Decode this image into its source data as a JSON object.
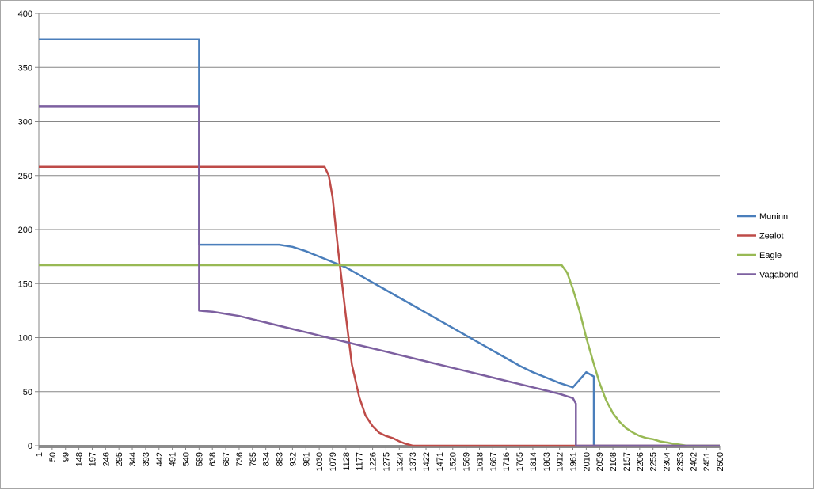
{
  "chart_data": {
    "type": "line",
    "title": "",
    "xlabel": "",
    "ylabel": "",
    "ylim": [
      0,
      400
    ],
    "yticks": [
      0,
      50,
      100,
      150,
      200,
      250,
      300,
      350,
      400
    ],
    "xlim": [
      1,
      2500
    ],
    "xticks": [
      1,
      50,
      99,
      148,
      197,
      246,
      295,
      344,
      393,
      442,
      491,
      540,
      589,
      638,
      687,
      736,
      785,
      834,
      883,
      932,
      981,
      1030,
      1079,
      1128,
      1177,
      1226,
      1275,
      1324,
      1373,
      1422,
      1471,
      1520,
      1569,
      1618,
      1667,
      1716,
      1765,
      1814,
      1863,
      1912,
      1961,
      2010,
      2059,
      2108,
      2157,
      2206,
      2255,
      2304,
      2353,
      2402,
      2451,
      2500
    ],
    "grid": true,
    "legend": "right",
    "series": [
      {
        "name": "Muninn",
        "color": "#4a7ebb",
        "x": [
          1,
          589,
          589,
          883,
          932,
          981,
          1030,
          1079,
          1128,
          1177,
          1226,
          1275,
          1324,
          1373,
          1422,
          1471,
          1520,
          1569,
          1618,
          1667,
          1716,
          1765,
          1814,
          1863,
          1912,
          1961,
          2010,
          2038,
          2038,
          2500
        ],
        "y": [
          376,
          376,
          186,
          186,
          184,
          180,
          175,
          170,
          165,
          158,
          151,
          144,
          137,
          130,
          123,
          116,
          109,
          102,
          95,
          88,
          81,
          74,
          68,
          63,
          58,
          54,
          68,
          64,
          0,
          0
        ]
      },
      {
        "name": "Zealot",
        "color": "#be4b48",
        "x": [
          1,
          1050,
          1065,
          1079,
          1100,
          1128,
          1150,
          1177,
          1200,
          1226,
          1250,
          1275,
          1300,
          1324,
          1345,
          1373,
          2500
        ],
        "y": [
          258,
          258,
          250,
          230,
          180,
          120,
          75,
          45,
          28,
          18,
          12,
          9,
          7,
          4,
          2,
          0,
          0
        ]
      },
      {
        "name": "Eagle",
        "color": "#98b954",
        "x": [
          1,
          1920,
          1940,
          1961,
          1985,
          2010,
          2035,
          2059,
          2083,
          2108,
          2133,
          2157,
          2182,
          2206,
          2231,
          2255,
          2280,
          2304,
          2328,
          2353,
          2380,
          2402,
          2500
        ],
        "y": [
          167,
          167,
          160,
          145,
          125,
          100,
          78,
          58,
          42,
          30,
          22,
          16,
          12,
          9,
          7,
          6,
          4,
          3,
          2,
          1,
          0,
          0,
          0
        ]
      },
      {
        "name": "Vagabond",
        "color": "#7d60a0",
        "x": [
          1,
          589,
          589,
          638,
          687,
          736,
          785,
          834,
          883,
          932,
          981,
          1030,
          1079,
          1128,
          1177,
          1226,
          1275,
          1324,
          1373,
          1422,
          1471,
          1520,
          1569,
          1618,
          1667,
          1716,
          1765,
          1814,
          1863,
          1912,
          1961,
          1972,
          1972,
          2500
        ],
        "y": [
          314,
          314,
          125,
          124,
          122,
          120,
          117,
          114,
          111,
          108,
          105,
          102,
          99,
          96,
          93,
          90,
          87,
          84,
          81,
          78,
          75,
          72,
          69,
          66,
          63,
          60,
          57,
          54,
          51,
          48,
          44,
          39,
          0,
          0
        ]
      }
    ]
  }
}
